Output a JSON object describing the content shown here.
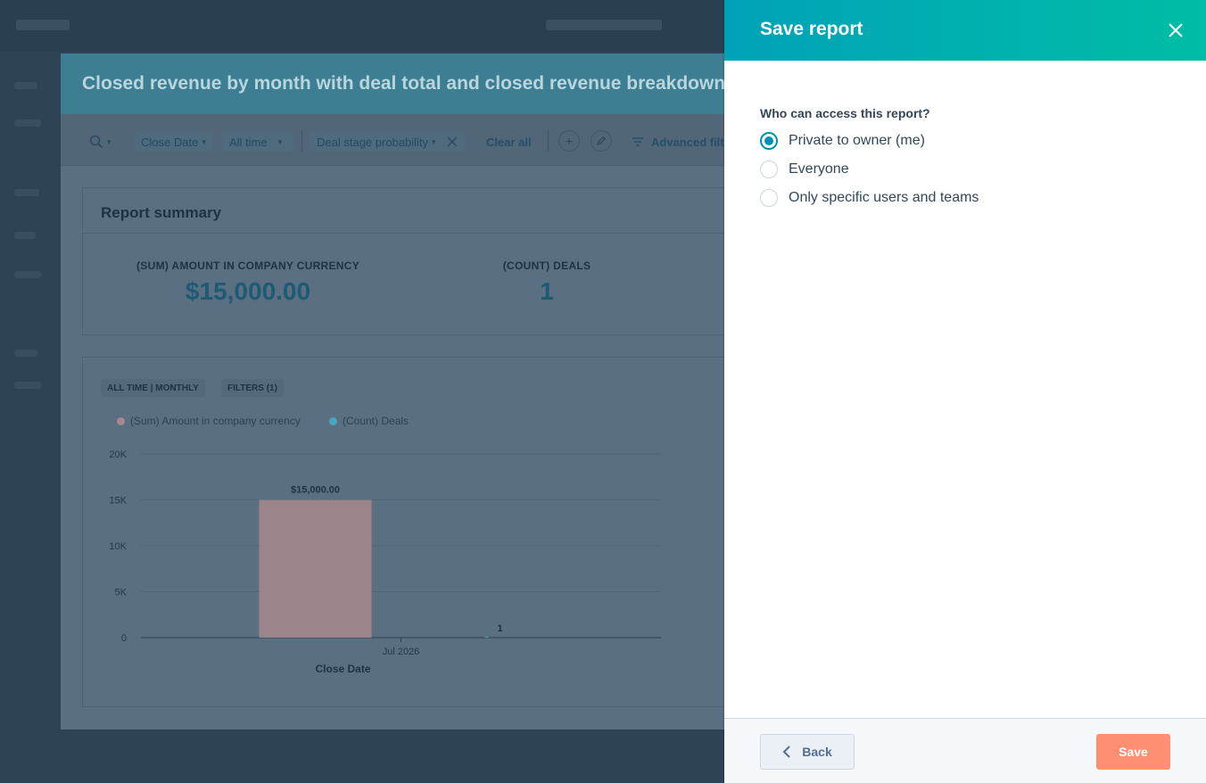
{
  "background_report": {
    "title": "Closed revenue by month with deal total and closed revenue breakdown",
    "filters": {
      "search_icon": "search-icon",
      "close_date_label": "Close Date",
      "range_label": "All time",
      "deal_stage_label": "Deal stage probability",
      "clear_all_label": "Clear all",
      "advanced_filters_label": "Advanced filte"
    },
    "summary": {
      "title": "Report summary",
      "kpis": [
        {
          "label": "(SUM) AMOUNT IN COMPANY CURRENCY",
          "value": "$15,000.00"
        },
        {
          "label": "(COUNT) DEALS",
          "value": "1"
        }
      ]
    },
    "chart_chips": [
      "ALL TIME | MONTHLY",
      "FILTERS (1)"
    ]
  },
  "chart_data": {
    "type": "bar",
    "categories": [
      "Jul 2026"
    ],
    "series": [
      {
        "name": "(Sum) Amount in company currency",
        "values": [
          15000
        ],
        "color": "#a7898d",
        "data_labels": [
          "$15,000.00"
        ]
      },
      {
        "name": "(Count) Deals",
        "values": [
          1
        ],
        "color": "#4aa6bd",
        "data_labels": [
          "1"
        ]
      }
    ],
    "xlabel": "Close Date",
    "ylabel": "",
    "ylim": [
      0,
      20000
    ],
    "yticks": [
      0,
      5000,
      10000,
      15000,
      20000
    ],
    "ytick_labels": [
      "0",
      "5K",
      "10K",
      "15K",
      "20K"
    ],
    "grid": true,
    "legend": "top-left"
  },
  "panel": {
    "title": "Save report",
    "close_icon": "close-icon",
    "question": "Who can access this report?",
    "options": [
      {
        "label": "Private to owner (me)",
        "checked": true
      },
      {
        "label": "Everyone",
        "checked": false
      },
      {
        "label": "Only specific users and teams",
        "checked": false
      }
    ],
    "back_label": "Back",
    "save_label": "Save",
    "colors": {
      "accent": "#0091ae",
      "save": "#ff8f73",
      "header_start": "#00a2b8",
      "header_end": "#00bda5"
    }
  }
}
